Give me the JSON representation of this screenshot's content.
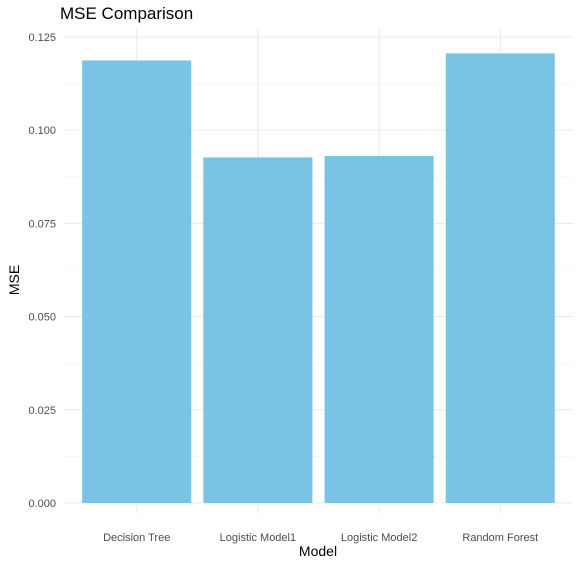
{
  "chart_data": {
    "type": "bar",
    "title": "MSE Comparison",
    "xlabel": "Model",
    "ylabel": "MSE",
    "categories": [
      "Decision Tree",
      "Logistic Model1",
      "Logistic Model2",
      "Random Forest"
    ],
    "values": [
      0.1187,
      0.0927,
      0.0931,
      0.1206
    ],
    "ylim": [
      0,
      0.125
    ],
    "yticks": [
      "0.000",
      "0.025",
      "0.050",
      "0.075",
      "0.100",
      "0.125"
    ],
    "bar_color": "#79C3E5",
    "grid": true,
    "legend": "none"
  }
}
